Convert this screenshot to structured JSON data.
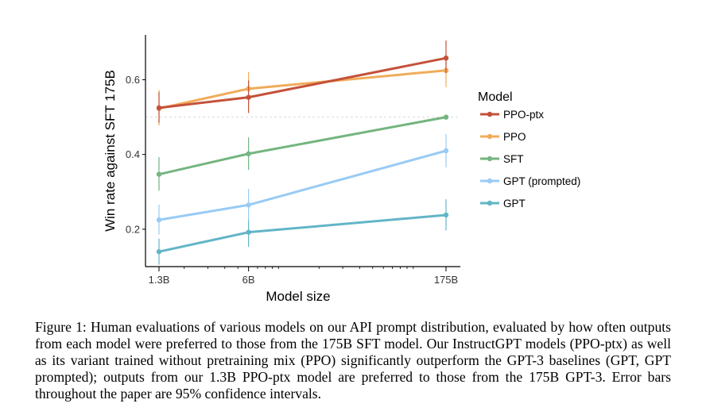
{
  "chart_data": {
    "type": "line",
    "xlabel": "Model size",
    "ylabel": "Win rate against SFT 175B",
    "x_scale": "log",
    "x_tick_labels": [
      "1.3B",
      "6B",
      "175B"
    ],
    "x_values": [
      1.3,
      6,
      175
    ],
    "ylim": [
      0.1,
      0.72
    ],
    "y_ticks": [
      0.2,
      0.4,
      0.6
    ],
    "y_tick_labels": [
      "0.2",
      "0.4",
      "0.6"
    ],
    "reference_line": 0.5,
    "grid": false,
    "legend_title": "Model",
    "legend_position": "right",
    "series": [
      {
        "name": "PPO-ptx",
        "color": "#c4513a",
        "values": [
          0.525,
          0.553,
          0.658
        ],
        "ci_low": [
          0.485,
          0.511,
          0.618
        ],
        "ci_high": [
          0.567,
          0.598,
          0.705
        ]
      },
      {
        "name": "PPO",
        "color": "#f0ac5a",
        "values": [
          0.523,
          0.576,
          0.625
        ],
        "ci_low": [
          0.478,
          0.537,
          0.58
        ],
        "ci_high": [
          0.573,
          0.621,
          0.668
        ]
      },
      {
        "name": "SFT",
        "color": "#74b57f",
        "values": [
          0.347,
          0.402,
          0.5
        ],
        "ci_low": [
          0.303,
          0.359,
          0.5
        ],
        "ci_high": [
          0.393,
          0.446,
          0.5
        ]
      },
      {
        "name": "GPT (prompted)",
        "color": "#99cbf5",
        "values": [
          0.225,
          0.265,
          0.41
        ],
        "ci_low": [
          0.186,
          0.222,
          0.366
        ],
        "ci_high": [
          0.266,
          0.308,
          0.455
        ]
      },
      {
        "name": "GPT",
        "color": "#62b5c7",
        "values": [
          0.14,
          0.192,
          0.238
        ],
        "ci_low": [
          0.105,
          0.153,
          0.197
        ],
        "ci_high": [
          0.175,
          0.228,
          0.28
        ]
      }
    ]
  },
  "caption": "Figure 1: Human evaluations of various models on our API prompt distribution, evaluated by how often outputs from each model were preferred to those from the 175B SFT model. Our InstructGPT models (PPO-ptx) as well as its variant trained without pretraining mix (PPO) significantly outperform the GPT-3 baselines (GPT, GPT prompted); outputs from our 1.3B PPO-ptx model are preferred to those from the 175B GPT-3. Error bars throughout the paper are 95% confidence intervals."
}
